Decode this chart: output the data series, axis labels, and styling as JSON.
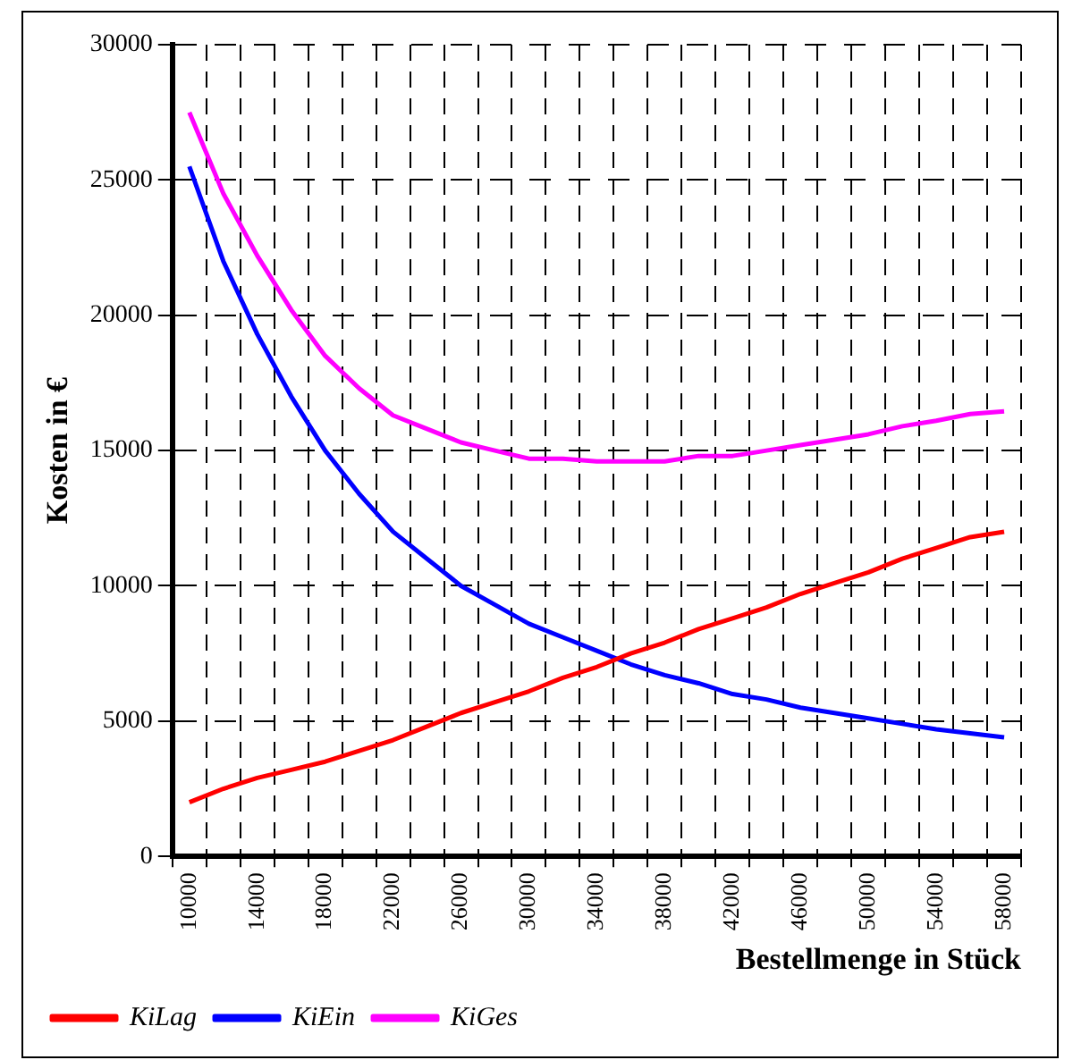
{
  "chart_data": {
    "type": "line",
    "xlabel": "Bestellmenge in Stück",
    "ylabel": "Kosten in €",
    "categories": [
      "10000",
      null,
      "14000",
      null,
      "18000",
      null,
      "22000",
      null,
      "26000",
      null,
      "30000",
      null,
      "34000",
      null,
      "38000",
      null,
      "42000",
      null,
      "46000",
      null,
      "50000",
      null,
      "54000",
      null,
      "58000"
    ],
    "series": [
      {
        "name": "KiLag",
        "color": "#ff0000",
        "values": [
          2000,
          2500,
          2900,
          3200,
          3500,
          3900,
          4300,
          4800,
          5300,
          5700,
          6100,
          6600,
          7000,
          7500,
          7900,
          8400,
          8800,
          9200,
          9700,
          10100,
          10500,
          11000,
          11400,
          11800,
          12000
        ]
      },
      {
        "name": "KiEin",
        "color": "#0000ff",
        "values": [
          25500,
          22000,
          19300,
          17000,
          15000,
          13400,
          12000,
          11000,
          10000,
          9300,
          8600,
          8100,
          7600,
          7100,
          6700,
          6400,
          6000,
          5800,
          5500,
          5300,
          5100,
          4900,
          4700,
          4550,
          4400
        ]
      },
      {
        "name": "KiGes",
        "color": "#ff00ff",
        "values": [
          27500,
          24500,
          22200,
          20200,
          18500,
          17300,
          16300,
          15800,
          15300,
          15000,
          14700,
          14700,
          14600,
          14600,
          14600,
          14800,
          14800,
          15000,
          15200,
          15400,
          15600,
          15900,
          16100,
          16350,
          16450
        ]
      }
    ],
    "ylim": [
      0,
      30000
    ],
    "yticks": [
      0,
      5000,
      10000,
      15000,
      20000,
      25000,
      30000
    ],
    "grid": true,
    "legend": "bottom left",
    "marker": "none",
    "line_style": "solid"
  }
}
